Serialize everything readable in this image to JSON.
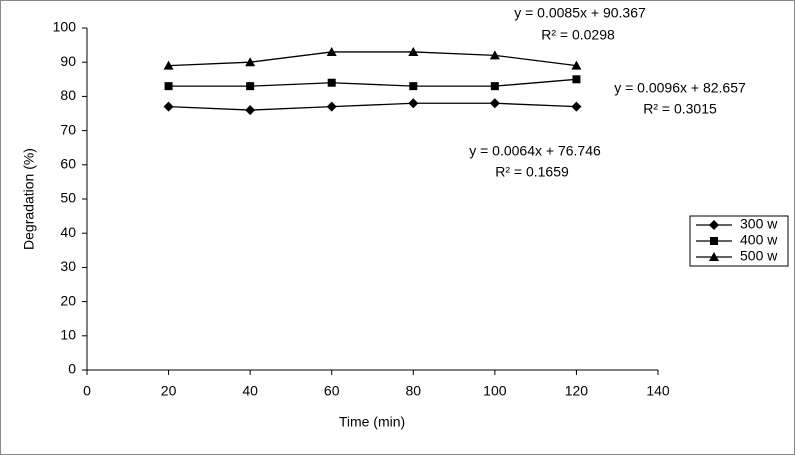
{
  "chart_data": {
    "type": "line",
    "x": [
      20,
      40,
      60,
      80,
      100,
      120
    ],
    "series": [
      {
        "name": "300 w",
        "color": "#000000",
        "marker": "diamond",
        "values": [
          77,
          76,
          77,
          78,
          78,
          77
        ]
      },
      {
        "name": "400 w",
        "color": "#000000",
        "marker": "square",
        "values": [
          83,
          83,
          84,
          83,
          83,
          85
        ]
      },
      {
        "name": "500 w",
        "color": "#000000",
        "marker": "triangle",
        "values": [
          89,
          90,
          93,
          93,
          92,
          89
        ]
      }
    ],
    "xlabel": "Time (min)",
    "ylabel": "Degradation (%)",
    "xlim": [
      0,
      140
    ],
    "xticks": [
      0,
      20,
      40,
      60,
      80,
      100,
      120,
      140
    ],
    "ylim": [
      0,
      100
    ],
    "yticks": [
      0,
      10,
      20,
      30,
      40,
      50,
      60,
      70,
      80,
      90,
      100
    ],
    "grid": false,
    "legend": "right",
    "annotations": [
      "y = 0.0085x + 90.367",
      "R² = 0.0298",
      "y = 0.0096x + 82.657",
      "R² = 0.3015",
      "y = 0.0064x + 76.746",
      "R² = 0.1659"
    ]
  }
}
